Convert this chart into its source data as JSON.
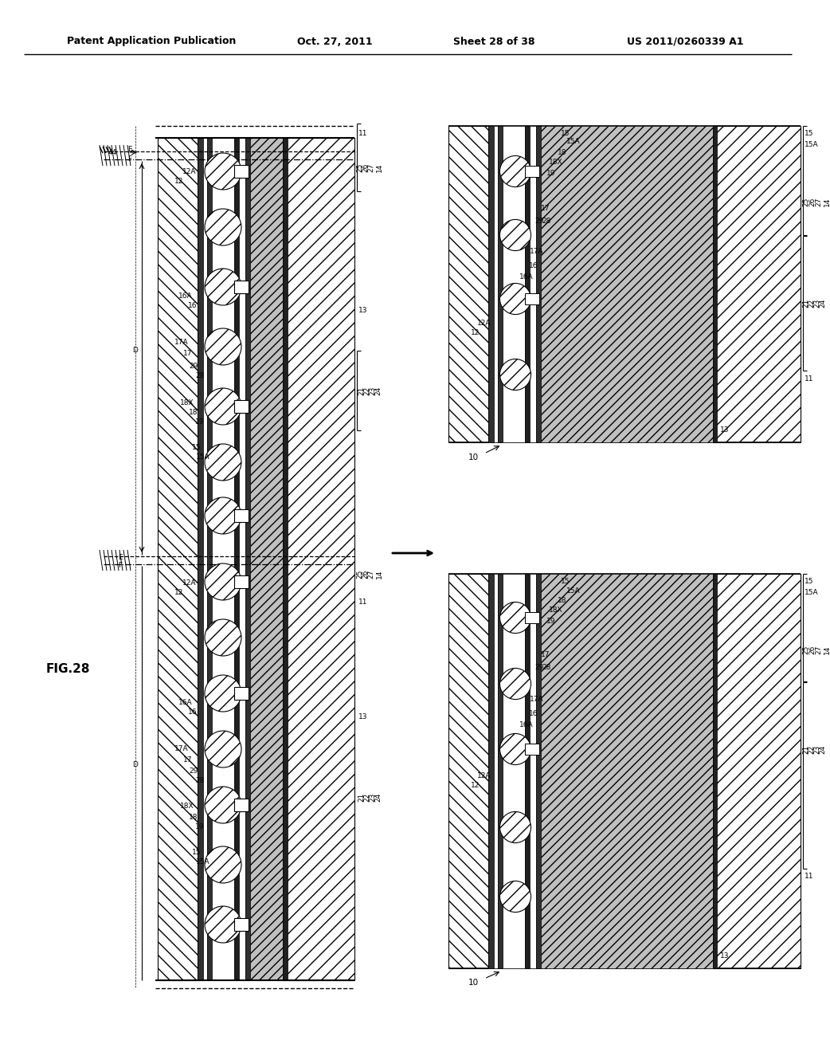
{
  "header_left": "Patent Application Publication",
  "header_center": "Oct. 27, 2011",
  "header_right_sheet": "Sheet 28 of 38",
  "header_right_num": "US 2011/0260339 A1",
  "background": "#ffffff",
  "text_color": "#000000",
  "fig_label": "FIG.28"
}
